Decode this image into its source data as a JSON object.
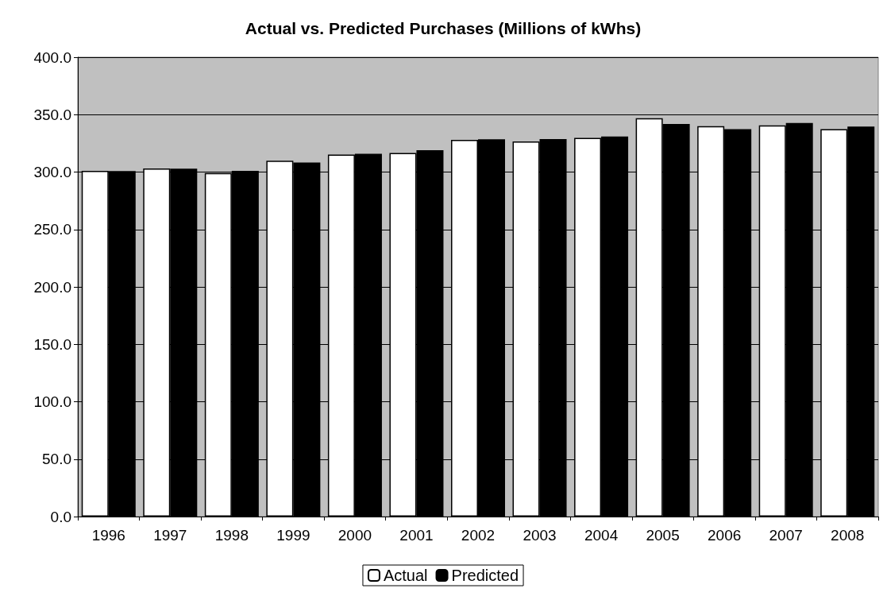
{
  "chart_data": {
    "type": "bar",
    "title": "Actual vs. Predicted Purchases (Millions of kWhs)",
    "categories": [
      "1996",
      "1997",
      "1998",
      "1999",
      "2000",
      "2001",
      "2002",
      "2003",
      "2004",
      "2005",
      "2006",
      "2007",
      "2008"
    ],
    "series": [
      {
        "name": "Actual",
        "color": "#ffffff",
        "values": [
          301.1,
          303.1,
          299.1,
          309.9,
          315.2,
          316.6,
          328.0,
          326.7,
          329.8,
          346.9,
          339.9,
          340.6,
          337.4
        ]
      },
      {
        "name": "Predicted",
        "color": "#000000",
        "values": [
          300.9,
          302.9,
          301.1,
          308.3,
          315.9,
          319.1,
          328.5,
          328.7,
          330.9,
          341.9,
          337.4,
          342.8,
          339.7
        ]
      }
    ],
    "ylim": [
      0,
      400
    ],
    "yticks": [
      {
        "value": 0,
        "label": "0.0"
      },
      {
        "value": 50,
        "label": "50.0"
      },
      {
        "value": 100,
        "label": "100.0"
      },
      {
        "value": 150,
        "label": "150.0"
      },
      {
        "value": 200,
        "label": "200.0"
      },
      {
        "value": 250,
        "label": "250.0"
      },
      {
        "value": 300,
        "label": "300.0"
      },
      {
        "value": 350,
        "label": "350.0"
      },
      {
        "value": 400,
        "label": "400.0"
      }
    ],
    "grid": "y",
    "legend": "bottom"
  }
}
